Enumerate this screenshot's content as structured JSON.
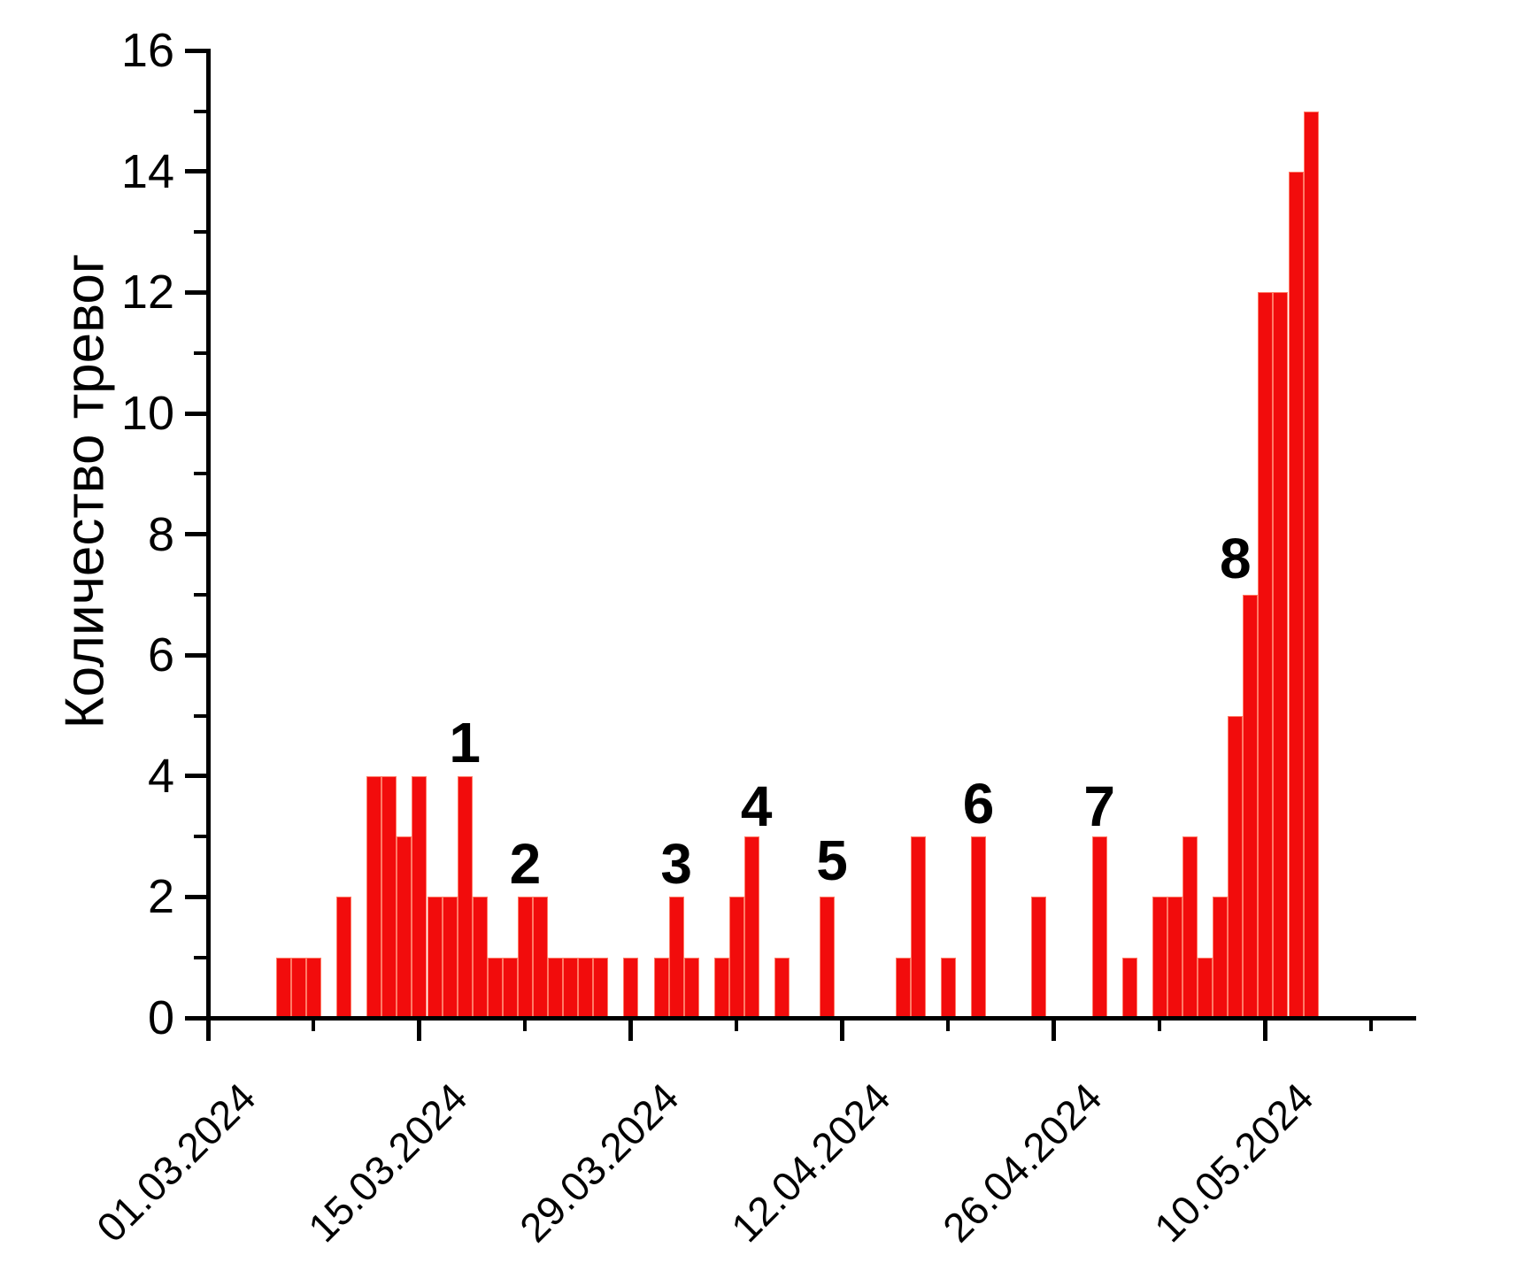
{
  "chart_data": {
    "type": "bar",
    "title": "",
    "xlabel": "",
    "ylabel": "Количество тревог",
    "ylim": [
      0,
      16
    ],
    "grid": false,
    "legend": false,
    "bar_color": "#f20c0c",
    "bar_edge_color": "#ff7a66",
    "axis_color": "#000000",
    "x_axis_note": "days are offsets from the first labeled tick (01.03.2024), one bar per day",
    "x_major_ticks": [
      {
        "day": 0,
        "label": "01.03.2024"
      },
      {
        "day": 14,
        "label": "15.03.2024"
      },
      {
        "day": 28,
        "label": "29.03.2024"
      },
      {
        "day": 42,
        "label": "12.04.2024"
      },
      {
        "day": 56,
        "label": "26.04.2024"
      },
      {
        "day": 70,
        "label": "10.05.2024"
      }
    ],
    "x_minor_tick_days": [
      7,
      21,
      35,
      49,
      63,
      77
    ],
    "y_major_ticks": [
      0,
      2,
      4,
      6,
      8,
      10,
      12,
      14,
      16
    ],
    "y_minor_ticks": [
      1,
      3,
      5,
      7,
      9,
      11,
      13,
      15
    ],
    "bars": [
      {
        "day": 5,
        "value": 1
      },
      {
        "day": 6,
        "value": 1
      },
      {
        "day": 7,
        "value": 1
      },
      {
        "day": 9,
        "value": 2
      },
      {
        "day": 11,
        "value": 4
      },
      {
        "day": 12,
        "value": 4
      },
      {
        "day": 13,
        "value": 3
      },
      {
        "day": 14,
        "value": 4
      },
      {
        "day": 15,
        "value": 2
      },
      {
        "day": 16,
        "value": 2
      },
      {
        "day": 17,
        "value": 4
      },
      {
        "day": 18,
        "value": 2
      },
      {
        "day": 19,
        "value": 1
      },
      {
        "day": 20,
        "value": 1
      },
      {
        "day": 21,
        "value": 2
      },
      {
        "day": 22,
        "value": 2
      },
      {
        "day": 23,
        "value": 1
      },
      {
        "day": 24,
        "value": 1
      },
      {
        "day": 25,
        "value": 1
      },
      {
        "day": 26,
        "value": 1
      },
      {
        "day": 28,
        "value": 1
      },
      {
        "day": 30,
        "value": 1
      },
      {
        "day": 31,
        "value": 2
      },
      {
        "day": 32,
        "value": 1
      },
      {
        "day": 34,
        "value": 1
      },
      {
        "day": 35,
        "value": 2
      },
      {
        "day": 36,
        "value": 3
      },
      {
        "day": 38,
        "value": 1
      },
      {
        "day": 41,
        "value": 2
      },
      {
        "day": 46,
        "value": 1
      },
      {
        "day": 47,
        "value": 3
      },
      {
        "day": 49,
        "value": 1
      },
      {
        "day": 51,
        "value": 3
      },
      {
        "day": 55,
        "value": 2
      },
      {
        "day": 59,
        "value": 3
      },
      {
        "day": 61,
        "value": 1
      },
      {
        "day": 63,
        "value": 2
      },
      {
        "day": 64,
        "value": 2
      },
      {
        "day": 65,
        "value": 3
      },
      {
        "day": 66,
        "value": 1
      },
      {
        "day": 67,
        "value": 2
      },
      {
        "day": 68,
        "value": 5
      },
      {
        "day": 69,
        "value": 7
      },
      {
        "day": 70,
        "value": 12
      },
      {
        "day": 71,
        "value": 12
      },
      {
        "day": 72,
        "value": 14
      },
      {
        "day": 73,
        "value": 15
      }
    ],
    "annotations": [
      {
        "text": "1",
        "day": 17,
        "y": 4.55
      },
      {
        "text": "2",
        "day": 21,
        "y": 2.55
      },
      {
        "text": "3",
        "day": 31,
        "y": 2.55
      },
      {
        "text": "4",
        "day": 36.3,
        "y": 3.5
      },
      {
        "text": "5",
        "day": 41.3,
        "y": 2.6
      },
      {
        "text": "6",
        "day": 51,
        "y": 3.55
      },
      {
        "text": "7",
        "day": 59,
        "y": 3.5
      },
      {
        "text": "8",
        "day": 68,
        "y": 7.6
      }
    ]
  }
}
